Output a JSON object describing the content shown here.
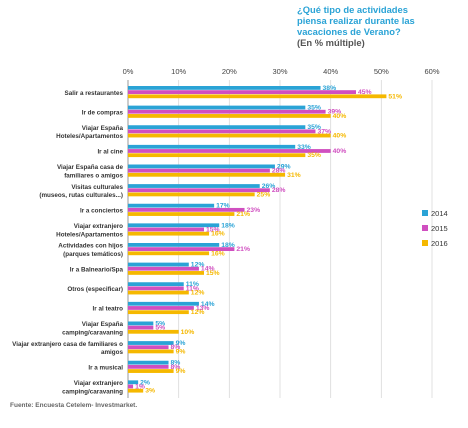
{
  "chart_data": {
    "type": "bar",
    "orientation": "horizontal",
    "title_lines": [
      "¿Qué tipo de actividades",
      "piensa realizar durante las",
      "vacaciones de Verano?"
    ],
    "subtitle": "(En % múltiple)",
    "x_ticks": [
      "0%",
      "10%",
      "20%",
      "30%",
      "40%",
      "50%",
      "60%"
    ],
    "xlim": [
      0,
      60
    ],
    "grid": true,
    "legend_position": "right",
    "categories": [
      [
        "Salir a restaurantes"
      ],
      [
        "Ir de compras"
      ],
      [
        "Viajar España",
        "Hoteles/Apartamentos"
      ],
      [
        "Ir al cine"
      ],
      [
        "Viajar España casa de",
        "familiares o amigos"
      ],
      [
        "Visitas culturales",
        "(museos, rutas culturales...)"
      ],
      [
        "Ir a conciertos"
      ],
      [
        "Viajar extranjero",
        "Hoteles/Apartamentos"
      ],
      [
        "Actividades con hijos",
        "(parques temáticos)"
      ],
      [
        "Ir a Balneario/Spa"
      ],
      [
        "Otros (especificar)"
      ],
      [
        "Ir al teatro"
      ],
      [
        "Viajar España",
        "camping/caravaning"
      ],
      [
        "Viajar extranjero casa de familiares o",
        "amigos"
      ],
      [
        "Ir a musical"
      ],
      [
        "Viajar extranjero",
        "camping/caravaning"
      ]
    ],
    "series": [
      {
        "name": "2014",
        "color": "#2aa3d6",
        "values": [
          38,
          35,
          35,
          33,
          29,
          26,
          17,
          18,
          18,
          12,
          11,
          14,
          5,
          9,
          8,
          2
        ]
      },
      {
        "name": "2015",
        "color": "#d04fc0",
        "values": [
          45,
          39,
          37,
          40,
          28,
          28,
          23,
          15,
          21,
          14,
          11,
          13,
          5,
          8,
          8,
          1
        ]
      },
      {
        "name": "2016",
        "color": "#f5b800",
        "values": [
          51,
          40,
          40,
          35,
          31,
          25,
          21,
          16,
          16,
          15,
          12,
          12,
          10,
          9,
          9,
          3
        ]
      }
    ],
    "source": "Fuente: Encuesta Cetelem- Investmarket."
  }
}
